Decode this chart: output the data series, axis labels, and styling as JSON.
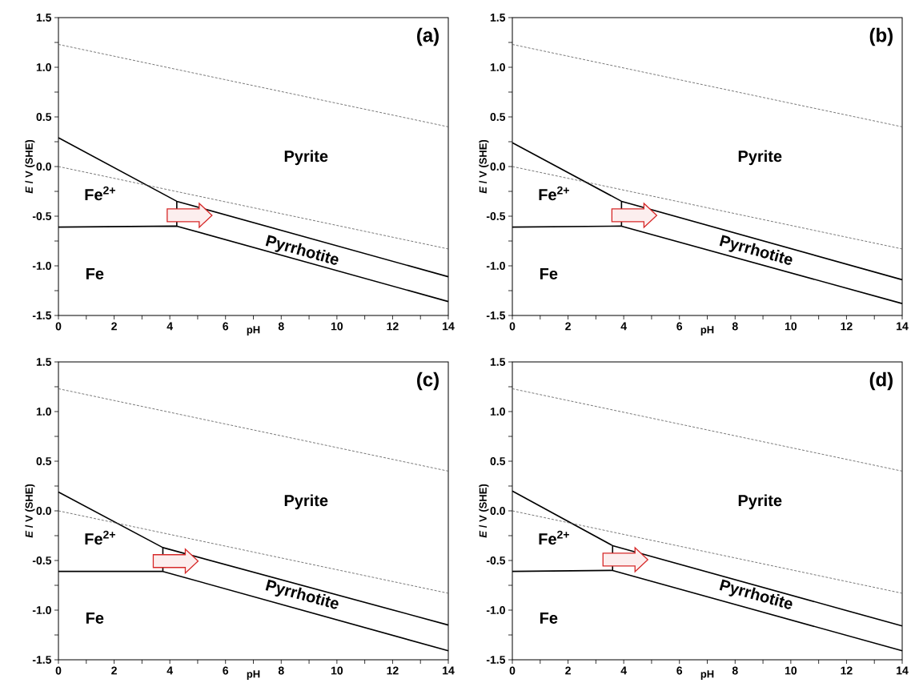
{
  "chart_data": [
    {
      "type": "line",
      "title": "(a)",
      "xlabel": "pH",
      "ylabel": "*E* / V (SHE)",
      "xlim": [
        0,
        14
      ],
      "ylim": [
        -1.5,
        1.5
      ],
      "xticks": [
        0,
        {
          "value": 1,
          "label": null
        },
        2,
        {
          "value": 3,
          "label": null
        },
        4,
        {
          "value": 5,
          "label": null
        },
        6,
        {
          "value": 7,
          "label": null
        },
        8,
        {
          "value": 9,
          "label": null
        },
        10,
        {
          "value": 11,
          "label": null
        },
        12,
        {
          "value": 13,
          "label": null
        },
        14
      ],
      "yticks": [
        -1.5,
        {
          "value": -1.25,
          "label": null
        },
        {
          "value": -1,
          "label": "-1.0"
        },
        {
          "value": -0.75,
          "label": null
        },
        -0.5,
        {
          "value": -0.25,
          "label": null
        },
        {
          "value": 0,
          "label": "0.0"
        },
        {
          "value": 0.25,
          "label": null
        },
        0.5,
        {
          "value": 0.75,
          "label": null
        },
        {
          "value": 1,
          "label": "1.0"
        },
        {
          "value": 1.25,
          "label": null
        },
        1.5
      ],
      "series": [
        {
          "x": [
            0,
            4.25,
            14
          ],
          "values": [
            0.29,
            -0.35,
            -1.11
          ],
          "color": "#000000",
          "line_style": "solid"
        },
        {
          "x": [
            0,
            4.25,
            14
          ],
          "values": [
            -0.61,
            -0.6,
            -1.36
          ],
          "color": "#000000",
          "line_style": "solid"
        },
        {
          "x": [
            4.25,
            4.25
          ],
          "values": [
            -0.35,
            -0.6
          ],
          "color": "#000000",
          "line_style": "solid"
        },
        {
          "x": [
            0,
            14
          ],
          "values": [
            1.23,
            0.4
          ],
          "color": "#555555",
          "line_style": "dashed"
        },
        {
          "x": [
            0,
            14
          ],
          "values": [
            0,
            -0.83
          ],
          "color": "#555555",
          "line_style": "dashed"
        }
      ],
      "annotations": [
        "Pyrite",
        "Fe$^{2+}$",
        "Fe",
        "Pyrrhotite"
      ]
    },
    {
      "type": "line",
      "title": "(b)",
      "xlabel": "pH",
      "ylabel": "*E* / V (SHE)",
      "xlim": [
        0,
        14
      ],
      "ylim": [
        -1.5,
        1.5
      ],
      "xticks": [
        0,
        {
          "value": 1,
          "label": null
        },
        2,
        {
          "value": 3,
          "label": null
        },
        4,
        {
          "value": 5,
          "label": null
        },
        6,
        {
          "value": 7,
          "label": null
        },
        8,
        {
          "value": 9,
          "label": null
        },
        10,
        {
          "value": 11,
          "label": null
        },
        12,
        {
          "value": 13,
          "label": null
        },
        14
      ],
      "yticks": [
        -1.5,
        {
          "value": -1.25,
          "label": null
        },
        {
          "value": -1,
          "label": "-1.0"
        },
        {
          "value": -0.75,
          "label": null
        },
        -0.5,
        {
          "value": -0.25,
          "label": null
        },
        {
          "value": 0,
          "label": "0.0"
        },
        {
          "value": 0.25,
          "label": null
        },
        0.5,
        {
          "value": 0.75,
          "label": null
        },
        {
          "value": 1,
          "label": "1.0"
        },
        {
          "value": 1.25,
          "label": null
        },
        1.5
      ],
      "series": [
        {
          "x": [
            0,
            3.92,
            14
          ],
          "values": [
            0.24,
            -0.35,
            -1.14
          ],
          "color": "#000000",
          "line_style": "solid"
        },
        {
          "x": [
            0,
            3.92,
            14
          ],
          "values": [
            -0.61,
            -0.6,
            -1.38
          ],
          "color": "#000000",
          "line_style": "solid"
        },
        {
          "x": [
            3.92,
            3.92
          ],
          "values": [
            -0.35,
            -0.6
          ],
          "color": "#000000",
          "line_style": "solid"
        },
        {
          "x": [
            0,
            14
          ],
          "values": [
            1.23,
            0.4
          ],
          "color": "#555555",
          "line_style": "dashed"
        },
        {
          "x": [
            0,
            14
          ],
          "values": [
            0,
            -0.83
          ],
          "color": "#555555",
          "line_style": "dashed"
        }
      ],
      "annotations": [
        "Pyrite",
        "Fe$^{2+}$",
        "Fe",
        "Pyrrhotite"
      ]
    },
    {
      "type": "line",
      "title": "(c)",
      "xlabel": "pH",
      "ylabel": "*E* / V (SHE)",
      "xlim": [
        0,
        14
      ],
      "ylim": [
        -1.5,
        1.5
      ],
      "xticks": [
        0,
        {
          "value": 1,
          "label": null
        },
        2,
        {
          "value": 3,
          "label": null
        },
        4,
        {
          "value": 5,
          "label": null
        },
        6,
        {
          "value": 7,
          "label": null
        },
        8,
        {
          "value": 9,
          "label": null
        },
        10,
        {
          "value": 11,
          "label": null
        },
        12,
        {
          "value": 13,
          "label": null
        },
        14
      ],
      "yticks": [
        -1.5,
        {
          "value": -1.25,
          "label": null
        },
        {
          "value": -1,
          "label": "-1.0"
        },
        {
          "value": -0.75,
          "label": null
        },
        -0.5,
        {
          "value": -0.25,
          "label": null
        },
        {
          "value": 0,
          "label": "0.0"
        },
        {
          "value": 0.25,
          "label": null
        },
        0.5,
        {
          "value": 0.75,
          "label": null
        },
        {
          "value": 1,
          "label": "1.0"
        },
        {
          "value": 1.25,
          "label": null
        },
        1.5
      ],
      "series": [
        {
          "x": [
            0,
            3.75,
            14
          ],
          "values": [
            0.19,
            -0.37,
            -1.15
          ],
          "color": "#000000",
          "line_style": "solid"
        },
        {
          "x": [
            0,
            3.75,
            14
          ],
          "values": [
            -0.61,
            -0.61,
            -1.41
          ],
          "color": "#000000",
          "line_style": "solid"
        },
        {
          "x": [
            3.75,
            3.75
          ],
          "values": [
            -0.37,
            -0.61
          ],
          "color": "#000000",
          "line_style": "solid"
        },
        {
          "x": [
            0,
            14
          ],
          "values": [
            1.23,
            0.4
          ],
          "color": "#555555",
          "line_style": "dashed"
        },
        {
          "x": [
            0,
            14
          ],
          "values": [
            0,
            -0.83
          ],
          "color": "#555555",
          "line_style": "dashed"
        }
      ],
      "annotations": [
        "Pyrite",
        "Fe$^{2+}$",
        "Fe",
        "Pyrrhotite"
      ]
    },
    {
      "type": "line",
      "title": "(d)",
      "xlabel": "pH",
      "ylabel": "*E* / V (SHE)",
      "xlim": [
        0,
        14
      ],
      "ylim": [
        -1.5,
        1.5
      ],
      "xticks": [
        0,
        {
          "value": 1,
          "label": null
        },
        2,
        {
          "value": 3,
          "label": null
        },
        4,
        {
          "value": 5,
          "label": null
        },
        6,
        {
          "value": 7,
          "label": null
        },
        8,
        {
          "value": 9,
          "label": null
        },
        10,
        {
          "value": 11,
          "label": null
        },
        12,
        {
          "value": 13,
          "label": null
        },
        14
      ],
      "yticks": [
        -1.5,
        {
          "value": -1.25,
          "label": null
        },
        {
          "value": -1,
          "label": "-1.0"
        },
        {
          "value": -0.75,
          "label": null
        },
        -0.5,
        {
          "value": -0.25,
          "label": null
        },
        {
          "value": 0,
          "label": "0.0"
        },
        {
          "value": 0.25,
          "label": null
        },
        0.5,
        {
          "value": 0.75,
          "label": null
        },
        {
          "value": 1,
          "label": "1.0"
        },
        {
          "value": 1.25,
          "label": null
        },
        1.5
      ],
      "series": [
        {
          "x": [
            0,
            3.6,
            14
          ],
          "values": [
            0.2,
            -0.35,
            -1.16
          ],
          "color": "#000000",
          "line_style": "solid"
        },
        {
          "x": [
            0,
            3.6,
            14
          ],
          "values": [
            -0.61,
            -0.6,
            -1.41
          ],
          "color": "#000000",
          "line_style": "solid"
        },
        {
          "x": [
            3.6,
            3.6
          ],
          "values": [
            -0.35,
            -0.6
          ],
          "color": "#000000",
          "line_style": "solid"
        },
        {
          "x": [
            0,
            14
          ],
          "values": [
            1.23,
            0.4
          ],
          "color": "#555555",
          "line_style": "dashed"
        },
        {
          "x": [
            0,
            14
          ],
          "values": [
            0,
            -0.83
          ],
          "color": "#555555",
          "line_style": "dashed"
        }
      ],
      "annotations": [
        "Pyrite",
        "Fe$^{2+}$",
        "Fe",
        "Pyrrhotite"
      ]
    }
  ]
}
